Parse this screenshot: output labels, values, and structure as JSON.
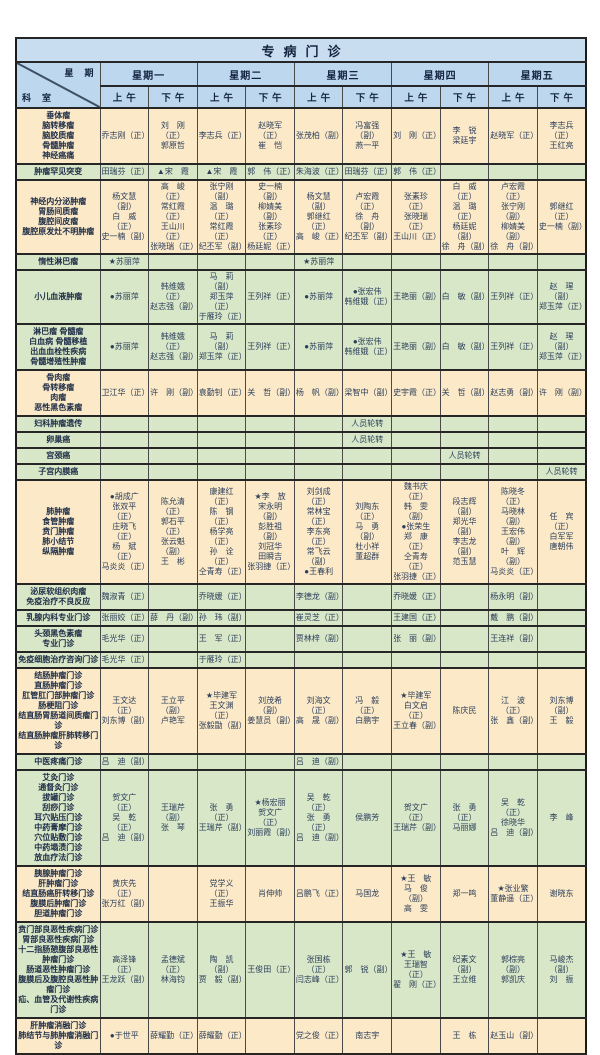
{
  "title": "专病门诊",
  "header": {
    "corner_top": "星　期",
    "corner_bottom": "科　室",
    "days": [
      "星期一",
      "星期二",
      "星期三",
      "星期四",
      "星期五"
    ],
    "am": "上午",
    "pm": "下午"
  },
  "colors": {
    "title_band": "#c9ddf0",
    "header_blue": "#bdd7ee",
    "row_yellow": "#fbe9c8",
    "row_green": "#d7e7c8",
    "grid_border": "#4a4a4a",
    "text_dark": "#1c2b45"
  },
  "legend_symbols": [
    "★",
    "●",
    "▲",
    "（正）",
    "（副）"
  ],
  "rotation_text": "人员轮转",
  "schedule": [
    {
      "label": "垂体瘤\n脑转移瘤\n脑胶质瘤\n骨髓肿瘤\n神经癌痛",
      "tone": "yellow",
      "cells": [
        "乔志刚（正）",
        "刘　刚（正）\n郭原哲",
        "李志兵（正）",
        "赵晓军（正）\n崔　恺",
        "张茂柏（副）",
        "冯富强（副）\n燕一平",
        "刘　刚（正）",
        "李　锐\n梁廷宇",
        "赵晓军（正）",
        "李志兵（正）\n王红亮"
      ]
    },
    {
      "label": "肿瘤罕见突变",
      "tone": "green",
      "cells": [
        "田瑞芬（正）",
        "▲宋　霞",
        "▲宋　霞",
        "郭　伟（正）",
        "朱海波（正）",
        "田瑞芬（正）",
        "郭　伟（正）",
        "",
        "",
        ""
      ]
    },
    {
      "label": "神经内分泌肿瘤\n胃肠间质瘤\n腹腔间皮瘤\n腹腔原发灶不明肿瘤",
      "tone": "yellow",
      "cells": [
        "杨文慧（副）\n白　威（正）\n史一楠（副）",
        "高　峻（正）\n常红霞（正）\n王山川（正）\n张晓瑞（正）",
        "张宁刚（副）\n温　璐（正）\n常红霞（正）\n纪丕军（副）",
        "史一楠（副）\n柳婧美（副）\n张素珍（正）\n杨廷妮（正）",
        "杨文慧（副）\n郭继红（正）\n高　峻（正）",
        "卢宏霞（正）\n徐　舟（副）\n纪丕军（副）",
        "张素珍（正）\n张晓瑞（正）\n王山川（正）",
        "白　威（正）\n温　璐（正）\n杨廷妮（副）\n徐　舟（副）",
        "卢宏霞（正）\n张宁刚（副）\n柳婧美（副）\n徐　舟（副）",
        "郭继红（正）\n史一楠（副）"
      ]
    },
    {
      "label": "惰性淋巴瘤",
      "tone": "green",
      "cells": [
        "★苏丽萍",
        "",
        "",
        "",
        "★苏丽萍",
        "",
        "",
        "",
        "",
        ""
      ]
    },
    {
      "label": "小儿血液肿瘤",
      "tone": "green",
      "cells": [
        "●苏丽萍",
        "韩维娥（正）\n赵志强（副）",
        "马　莉（副）\n郑玉萍（正）\n于雁玲（正）",
        "王列祥（正）",
        "●苏丽萍",
        "●张宏伟\n韩维娥（正）",
        "王艳丽（副）",
        "白　敏（副）",
        "王列祥（正）",
        "赵　瑆（副）\n郑玉萍（正）"
      ]
    },
    {
      "label": "淋巴瘤 骨髓瘤\n白血病 骨髓移植\n出血血栓性疾病\n骨髓增殖性肿瘤",
      "tone": "green",
      "cells": [
        "●苏丽萍",
        "韩维娥（正）\n赵志强（副）",
        "马　莉（副）\n郑玉萍（正）",
        "王列祥（正）",
        "●苏丽萍",
        "●张宏伟\n韩维娥（正）",
        "王艳丽（副）",
        "白　敏（副）",
        "王列祥（正）",
        "赵　瑆（副）\n郑玉萍（正）"
      ]
    },
    {
      "label": "骨肉瘤\n骨转移瘤\n肉瘤\n恶性黑色素瘤",
      "tone": "yellow",
      "cells": [
        "卫江华（正）",
        "许　刚（副）",
        "袁勤钊（正）",
        "关　哲（副）",
        "杨　帆（副）",
        "梁智中（副）",
        "史宇霞（正）",
        "关　哲（副）",
        "赵志勇（副）",
        "许　刚（副）"
      ]
    },
    {
      "label": "妇科肿瘤遗传",
      "tone": "green",
      "cells": [
        "",
        "",
        "",
        "",
        "",
        "人员轮转",
        "",
        "",
        "",
        ""
      ]
    },
    {
      "label": "卵巢癌",
      "tone": "green",
      "cells": [
        "",
        "",
        "",
        "",
        "",
        "人员轮转",
        "",
        "",
        "",
        ""
      ]
    },
    {
      "label": "宫颈癌",
      "tone": "green",
      "cells": [
        "",
        "",
        "",
        "",
        "",
        "",
        "",
        "人员轮转",
        "",
        ""
      ]
    },
    {
      "label": "子宫内膜癌",
      "tone": "green",
      "cells": [
        "",
        "",
        "",
        "",
        "",
        "",
        "",
        "",
        "",
        "人员轮转"
      ]
    },
    {
      "label": "肺肿瘤\n食管肿瘤\n贲门肿瘤\n肺小结节\n纵隔肿瘤",
      "tone": "yellow",
      "cells": [
        "●胡成广\n张双平（正）\n庄晓飞（正）\n杨　斌（正）\n马炎炎（正）",
        "陈允清（正）\n郭石平（正）\n张云魁（副）\n王　彬",
        "康建红（正）\n陈　钢（正）\n杨学亮（正）\n孙　诠（正）\n仝青寿（正）",
        "★李　放\n宋永明（副）\n彭胜祖（副）\n刘冠华\n田瞬吉\n张羽捷（正）",
        "刘剑成（正）\n常林宝（正）\n李东亮（正）\n常飞云（副）\n●王春利",
        "刘陶东（正）\n马　勇（副）\n杜小祥\n董超群",
        "魏书庆（正）\n韩　雯（副）\n●张荣生\n郑　康（正）\n仝青寿（正）\n张羽捷（正）",
        "段志辉（副）\n郑光华（副）\n李志龙（副）\n范玉慧",
        "陈晓冬（正）\n马晓林（副）\n王宏伟（副）\n叶　辉（副）\n马炎炎（正）",
        "任　宾（正）\n白军军\n唐朝伟"
      ]
    },
    {
      "label": "泌尿软组织肉瘤\n免疫治疗不良反应",
      "tone": "green",
      "cells": [
        "魏淑青（正）",
        "",
        "乔晓媛（正）",
        "",
        "李德龙（副）",
        "",
        "乔晓媛（正）",
        "",
        "杨永明（副）",
        ""
      ]
    },
    {
      "label": "乳腺内科专业门诊",
      "tone": "green",
      "cells": [
        "张丽姣（正）",
        "薛　丹（副）",
        "孙　玮（副）",
        "",
        "崔灵芝（正）",
        "",
        "王建国（正）",
        "",
        "戴　鹏（副）",
        ""
      ]
    },
    {
      "label": "头颈黑色素瘤\n专业门诊",
      "tone": "green",
      "cells": [
        "毛光华（正）",
        "",
        "王　军（正）",
        "",
        "贾林梓（副）",
        "",
        "张　丽（副）",
        "",
        "王连祥（副）",
        ""
      ]
    },
    {
      "label": "免疫细胞治疗咨询门诊",
      "tone": "green",
      "cells": [
        "毛光华（正）",
        "",
        "于雁玲（正）",
        "",
        "",
        "",
        "",
        "",
        "",
        ""
      ]
    },
    {
      "label": "结肠肿瘤门诊\n直肠肿瘤门诊\n肛管肛门部肿瘤门诊\n肠梗阻门诊\n结直肠胃肠道间质瘤门诊\n结直肠肿瘤肝肺转移门诊",
      "tone": "yellow",
      "cells": [
        "王文达（正）\n刘东博（副）",
        "王立平（副）\n卢艳军",
        "★毕建军\n王文渊（正）\n张毅勖（副）",
        "刘茂希（副）\n姜慧员（副）",
        "刘海文（正）\n高　晟（副）",
        "冯　毅（正）\n白鹏宇",
        "★毕建军\n白文启（正）\n王立春（副）",
        "陈庆民",
        "江　波（正）\n张　鑫（副）",
        "刘东博（副）\n王　毅"
      ]
    },
    {
      "label": "中医疼痛门诊",
      "tone": "green",
      "cells": [
        "吕　迪（副）",
        "",
        "",
        "",
        "吕　迪（副）",
        "",
        "",
        "",
        "",
        ""
      ]
    },
    {
      "label": "艾灸门诊\n通督灸门诊\n拔罐门诊\n刮痧门诊\n耳穴贴压门诊\n中药膏摩门诊\n穴位贴敷门诊\n中药塌渍门诊\n放血疗法门诊",
      "tone": "green",
      "cells": [
        "贺文广（正）\n吴　乾（正）\n吕　迪（副）",
        "王瑞芹（副）\n张　琴",
        "张　勇（正）\n王瑞芹（副）",
        "★杨宏丽\n贺文广（正）\n刘丽霞（副）",
        "吴　乾（正）\n张　勇（正）\n吕　迪（副）",
        "侯鹏芳",
        "贺文广（正）\n王瑞芹（副）",
        "张　勇（正）\n马丽娜",
        "吴　乾（正）\n徐晓华\n吕　迪（副）",
        "李　峰"
      ]
    },
    {
      "label": "胰腺肿瘤门诊\n肝肿瘤门诊\n结直肠癌肝转移门诊\n腹膜后肿瘤门诊\n胆道肿瘤门诊",
      "tone": "yellow",
      "cells": [
        "黄庆先（正）\n张万红（副）",
        "",
        "党学义（正）\n王振华",
        "肖伸帅",
        "吕鹏飞（正）",
        "马国龙",
        "★王　敏\n马　俊（副）\n高　雯",
        "郑一鸣",
        "★张业繁\n董静遥（正）",
        "谢晓东"
      ]
    },
    {
      "label": "贲门部良恶性疾病门诊\n胃部良恶性疾病门诊\n十二指肠憩腹部良恶性肿瘤门诊\n肠道恶性肿瘤门诊\n腹膜后及腹腔良恶性肿瘤门诊\n疝、血管及代谢性疾病门诊",
      "tone": "green",
      "cells": [
        "高泽锋（正）\n王龙跃（副）",
        "孟德斌（正）\n林海钧",
        "陶　凯（副）\n贾　毅（副）",
        "王俊田（正）",
        "张国栋（正）\n闫志峰（正）",
        "郭　锐（副）",
        "★王　敏\n王瑞智（正）\n翟　刚（正）",
        "纪素文（副）\n王立维",
        "郭棕亮（副）\n郭凯庆",
        "马峻杰（副）\n刘　振"
      ]
    },
    {
      "label": "肝肿瘤消融门诊\n肺结节与肺肿瘤消融门诊",
      "tone": "yellow",
      "cells": [
        "●于世平",
        "薛耀勤（正）",
        "薛耀勤（正）",
        "",
        "党之俊（正）",
        "南志宇",
        "",
        "王　栋",
        "赵玉山（副）",
        ""
      ]
    }
  ]
}
